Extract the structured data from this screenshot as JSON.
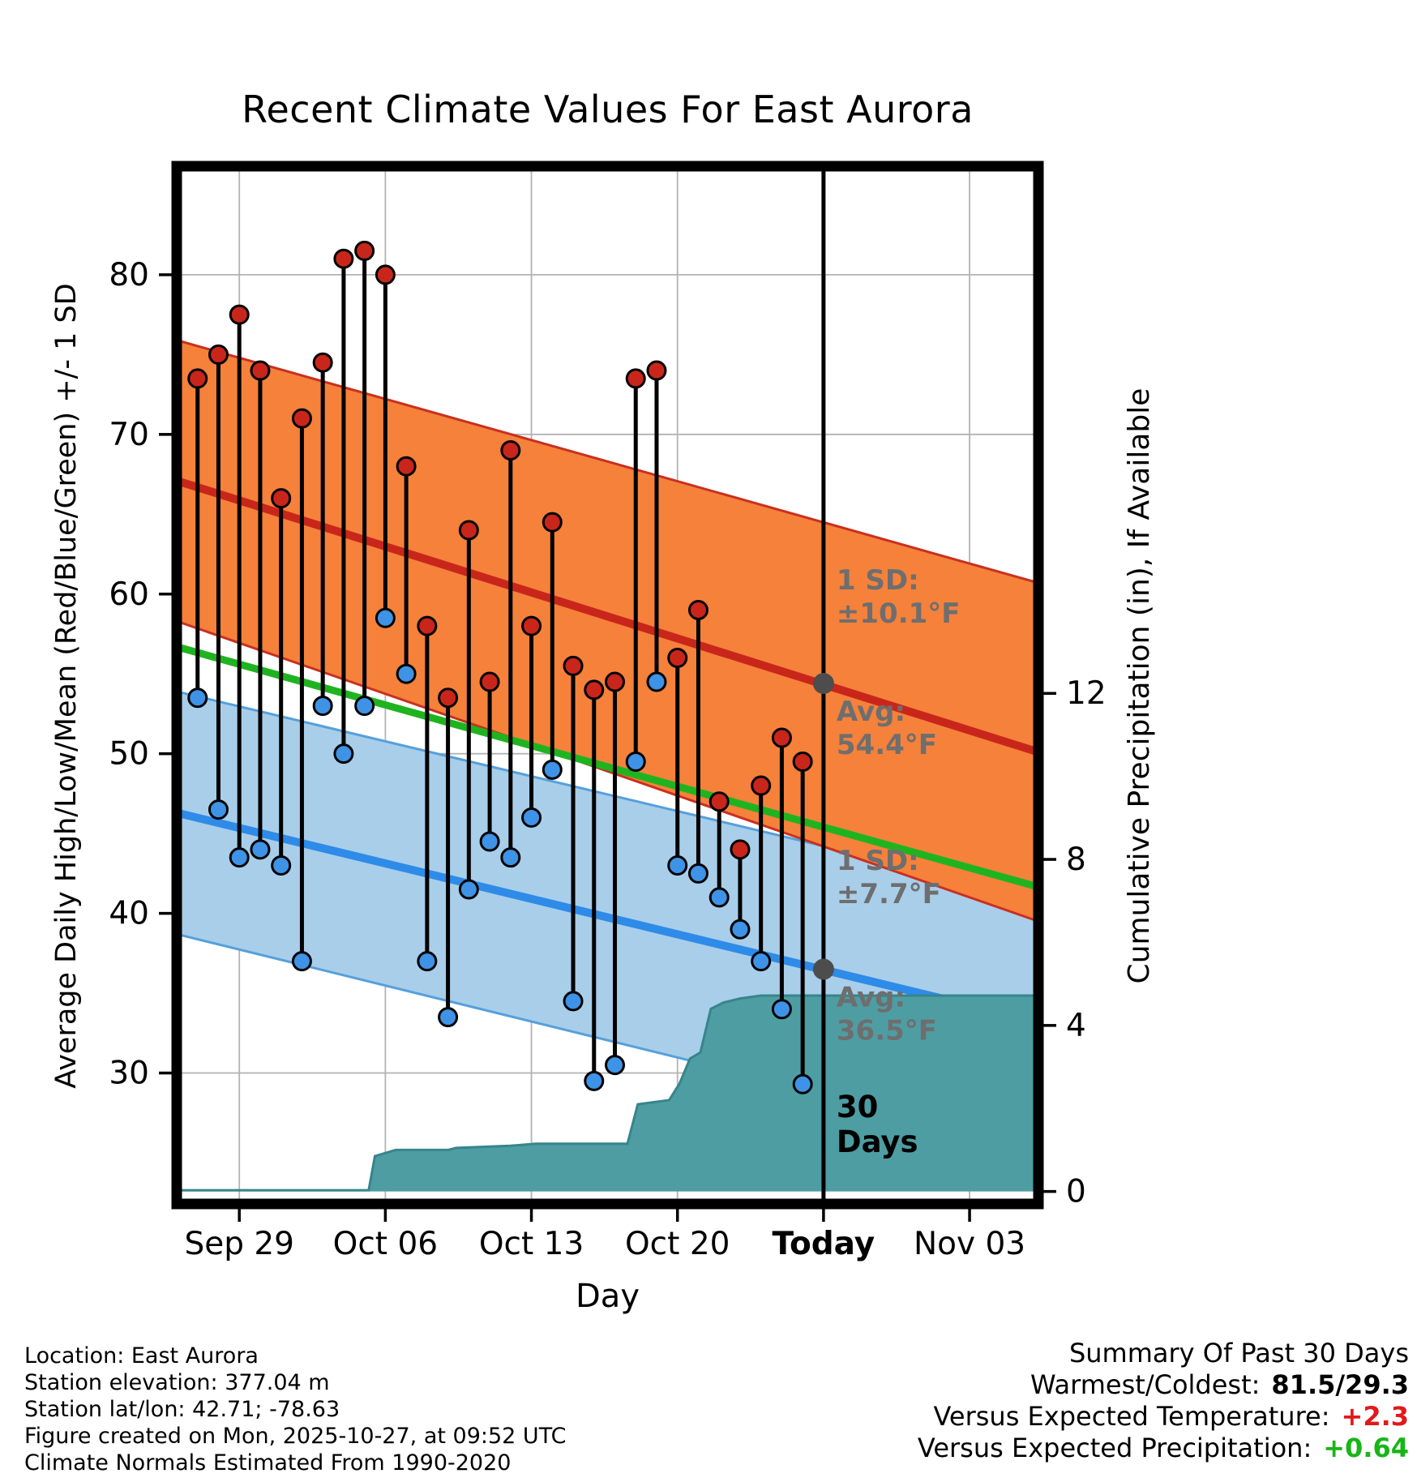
{
  "chart_data": {
    "type": "line",
    "title": "Recent Climate Values For East Aurora",
    "xlabel": "Day",
    "ylabel_left": "Average Daily High/Low/Mean (Red/Blue/Green) +/- 1 SD",
    "ylabel_right": "Cumulative Precipitation (in), If Available",
    "x_domain_days": [
      0,
      41.3
    ],
    "temp_ylim": [
      21.8,
      86.8
    ],
    "precip_ylim": [
      -0.3,
      24.7
    ],
    "x_ticks": [
      {
        "x": 3,
        "label": "Sep 29",
        "bold": false
      },
      {
        "x": 10,
        "label": "Oct 06",
        "bold": false
      },
      {
        "x": 17,
        "label": "Oct 13",
        "bold": false
      },
      {
        "x": 24,
        "label": "Oct 20",
        "bold": false
      },
      {
        "x": 31,
        "label": "Today",
        "bold": true
      },
      {
        "x": 38,
        "label": "Nov 03",
        "bold": false
      }
    ],
    "temp_ticks": [
      30,
      40,
      50,
      60,
      70,
      80
    ],
    "precip_ticks": [
      0,
      4,
      8,
      12
    ],
    "today_x": 31,
    "today_markers": [
      54.4,
      36.5
    ],
    "daily": {
      "dates": [
        "Sep 27",
        "Sep 28",
        "Sep 29",
        "Sep 30",
        "Oct 01",
        "Oct 02",
        "Oct 03",
        "Oct 04",
        "Oct 05",
        "Oct 06",
        "Oct 07",
        "Oct 08",
        "Oct 09",
        "Oct 10",
        "Oct 11",
        "Oct 12",
        "Oct 13",
        "Oct 14",
        "Oct 15",
        "Oct 16",
        "Oct 17",
        "Oct 18",
        "Oct 19",
        "Oct 20",
        "Oct 21",
        "Oct 22",
        "Oct 23",
        "Oct 24",
        "Oct 25",
        "Oct 26"
      ],
      "x": [
        1,
        2,
        3,
        4,
        5,
        6,
        7,
        8,
        9,
        10,
        11,
        12,
        13,
        14,
        15,
        16,
        17,
        18,
        19,
        20,
        21,
        22,
        23,
        24,
        25,
        26,
        27,
        28,
        29,
        30
      ],
      "high": [
        73.5,
        75,
        77.5,
        74,
        66,
        71,
        74.5,
        81,
        81.5,
        80,
        68,
        58,
        53.5,
        64,
        54.5,
        69,
        58,
        64.5,
        55.5,
        54,
        54.5,
        73.5,
        74,
        56,
        59,
        47,
        44,
        48,
        51,
        49.5
      ],
      "low": [
        53.5,
        46.5,
        43.5,
        44,
        43,
        37,
        53,
        50,
        53,
        58.5,
        55,
        37,
        33.5,
        41.5,
        44.5,
        43.5,
        46,
        49,
        34.5,
        29.5,
        30.5,
        49.5,
        54.5,
        43,
        42.5,
        41,
        39,
        37,
        34,
        29.3
      ]
    },
    "normals": {
      "high_mean": {
        "x": [
          0,
          41.3
        ],
        "y": [
          67.1,
          50.1
        ]
      },
      "high_sd": {
        "x": [
          0,
          41.3
        ],
        "y": [
          8.8,
          10.6
        ]
      },
      "low_mean": {
        "x": [
          0,
          41.3
        ],
        "y": [
          46.3,
          33.2
        ]
      },
      "low_sd": {
        "x": [
          0,
          41.3
        ],
        "y": [
          7.6,
          7.8
        ]
      },
      "mean": {
        "x": [
          0,
          41.3
        ],
        "y": [
          56.7,
          41.65
        ]
      }
    },
    "precip_cumulative": {
      "x": [
        0,
        9.2,
        9.5,
        10.5,
        13,
        13.4,
        16,
        17.2,
        21.6,
        22.1,
        23.6,
        24.1,
        24.6,
        25.1,
        25.6,
        26.2,
        27.0,
        28.0,
        41.3
      ],
      "y": [
        0.03,
        0.03,
        0.85,
        1.0,
        1.0,
        1.05,
        1.1,
        1.15,
        1.15,
        2.1,
        2.2,
        2.6,
        3.2,
        3.35,
        4.4,
        4.55,
        4.65,
        4.72,
        4.72
      ]
    },
    "annotations": {
      "high_sd_lines": [
        "1 SD:",
        "±10.1°F"
      ],
      "high_avg_lines": [
        "Avg:",
        "54.4°F"
      ],
      "low_sd_lines": [
        "1 SD:",
        "±7.7°F"
      ],
      "low_avg_lines": [
        "Avg:",
        "36.5°F"
      ],
      "period_lines": [
        "30",
        "Days"
      ]
    }
  },
  "colors": {
    "high_band_fill": "#F5813B",
    "high_band_edge": "#C9301F",
    "high_mean_line": "#C9261B",
    "high_dot": "#C9261B",
    "low_band_fill": "#A9CEE9",
    "low_band_edge": "#55A0DC",
    "low_mean_line": "#2E8BE8",
    "low_dot": "#3E93E6",
    "mean_line": "#1FB41F",
    "precip_fill": "#4E9DA3",
    "precip_edge": "#37858C",
    "stem": "#000000",
    "today_line": "#000000",
    "marker_gray": "#4D4D4D",
    "annotation_gray": "#6E6E6E",
    "grid": "#B3B3B3",
    "frame": "#000000"
  },
  "footer": {
    "left_lines": [
      "Location: East Aurora",
      "Station elevation: 377.04 m",
      "Station lat/lon: 42.71; -78.63",
      "Figure created on Mon, 2025-10-27, at 09:52 UTC",
      "Climate Normals Estimated From 1990-2020"
    ],
    "summary": {
      "heading": "Summary Of Past 30 Days",
      "rows": [
        {
          "label": "Warmest/Coldest:",
          "value": "81.5/29.3",
          "value_color": "#000000"
        },
        {
          "label": "Versus Expected Temperature:",
          "value": "+2.3",
          "value_color": "#E01A1A"
        },
        {
          "label": "Versus Expected Precipitation:",
          "value": "+0.64",
          "value_color": "#17B517"
        }
      ]
    }
  }
}
